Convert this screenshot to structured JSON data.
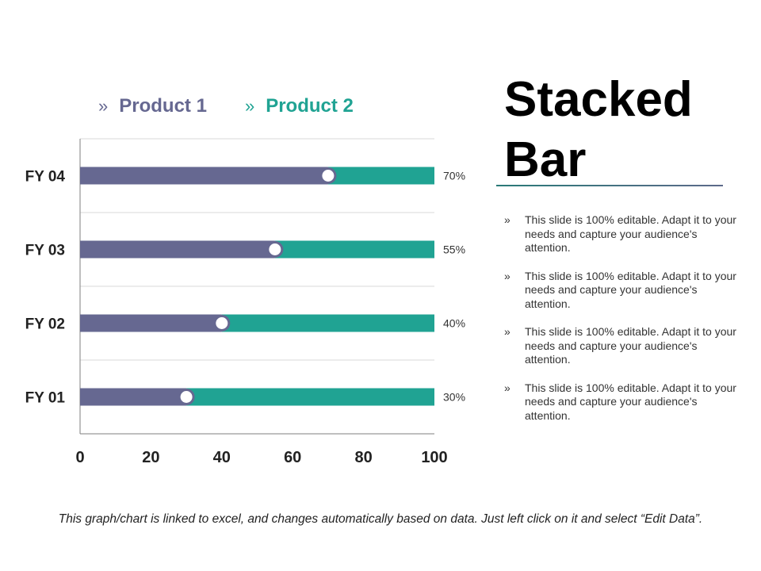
{
  "legend": {
    "marker": "»",
    "series1": "Product 1",
    "series2": "Product 2"
  },
  "title": {
    "line1": "Stacked",
    "line2": "Bar"
  },
  "bullets": [
    {
      "marker": "»",
      "text": "This slide is 100% editable. Adapt it to your needs and capture your audience's attention."
    },
    {
      "marker": "»",
      "text": "This slide is 100% editable. Adapt it to your needs and capture your audience's attention."
    },
    {
      "marker": "»",
      "text": "This slide is 100% editable. Adapt it to your needs and capture your audience's attention."
    },
    {
      "marker": "»",
      "text": "This slide is 100% editable. Adapt it to your needs and capture your audience's attention."
    }
  ],
  "footnote": "This graph/chart is linked to excel, and changes automatically based on data. Just left click on it and select “Edit Data”.",
  "colors": {
    "product1": "#666891",
    "product2": "#20a393",
    "marker_fill": "#ffffff",
    "marker_stroke": "#666891",
    "grid": "#d9d9d9",
    "axis": "#7f7f7f"
  },
  "chart_data": {
    "type": "bar",
    "orientation": "horizontal",
    "stacked": true,
    "categories": [
      "FY  04",
      "FY  03",
      "FY  02",
      "FY  01"
    ],
    "series": [
      {
        "name": "Product 1",
        "values": [
          70,
          55,
          40,
          30
        ]
      },
      {
        "name": "Product 2",
        "values": [
          30,
          45,
          60,
          70
        ]
      }
    ],
    "data_labels": [
      "70%",
      "55%",
      "40%",
      "30%"
    ],
    "xlim": [
      0,
      100
    ],
    "xticks": [
      0,
      20,
      40,
      60,
      80,
      100
    ],
    "xlabel": "",
    "ylabel": "",
    "grid": true,
    "legend_position": "top"
  }
}
